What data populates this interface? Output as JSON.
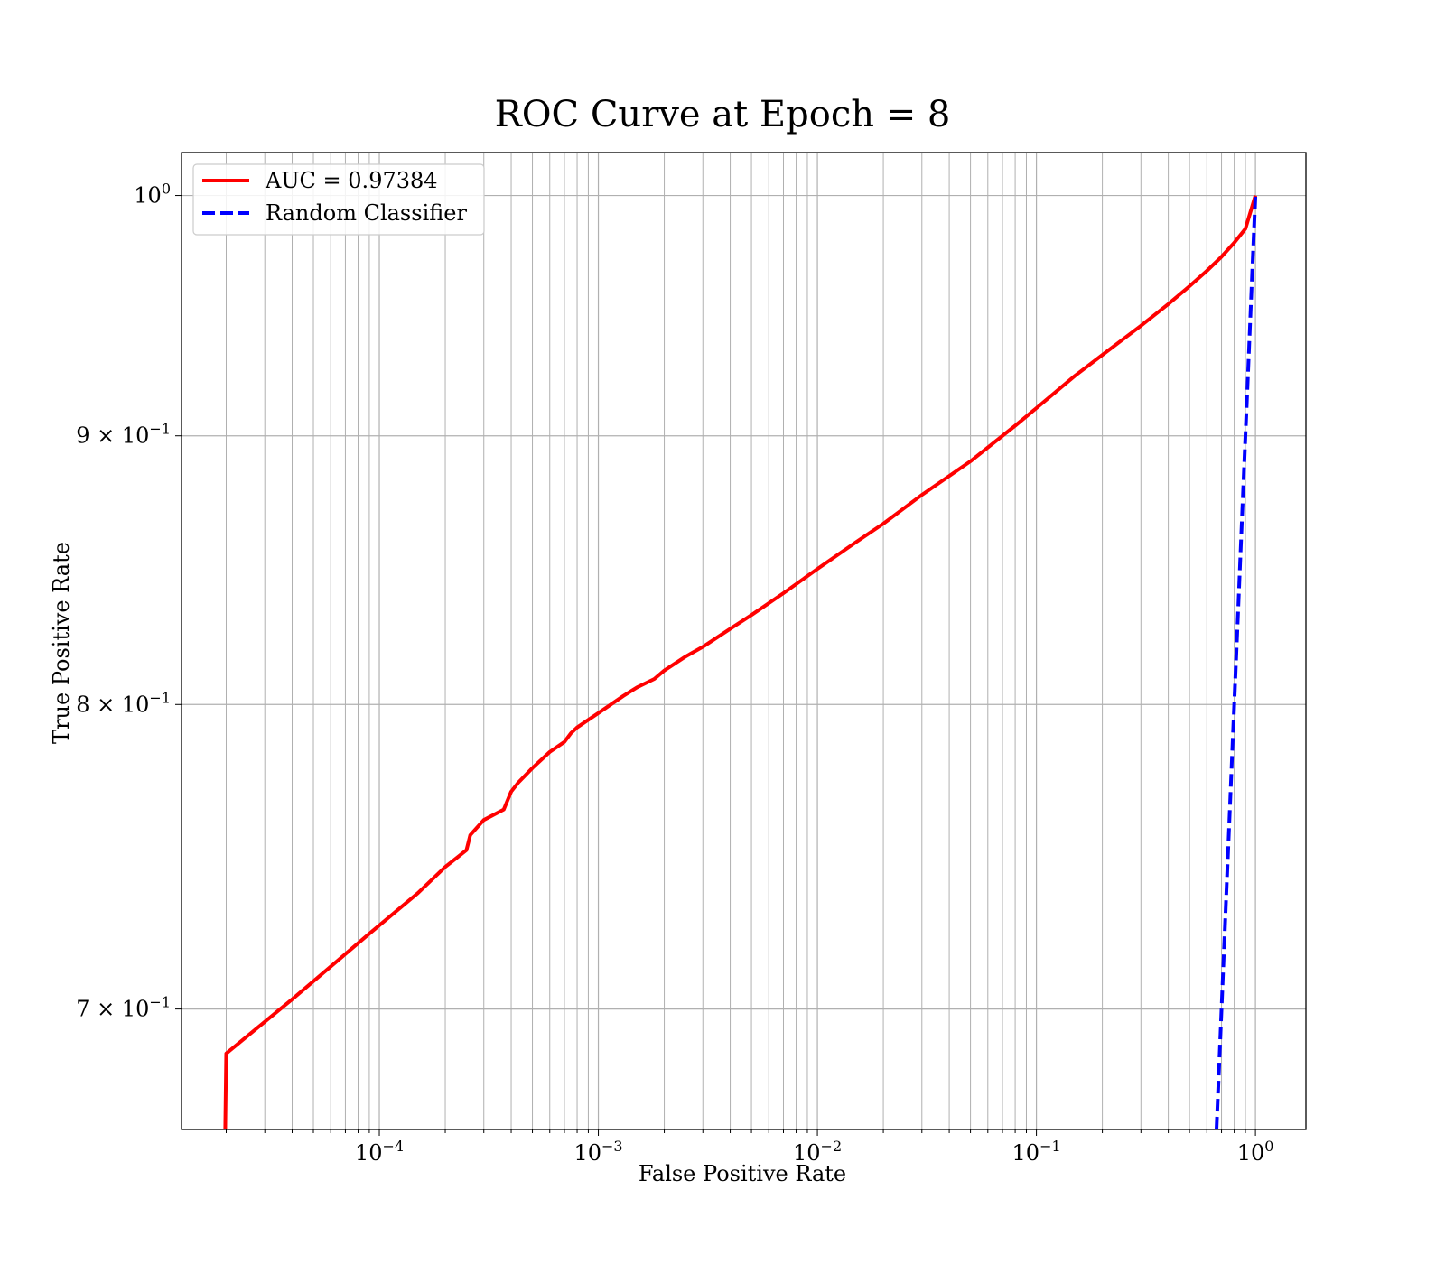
{
  "chart_data": {
    "type": "line",
    "title": "ROC Curve at Epoch = 8",
    "xlabel": "False Positive Rate",
    "ylabel": "True Positive Rate",
    "xscale": "log",
    "yscale": "log",
    "xlim": [
      1.25e-05,
      1.7
    ],
    "ylim": [
      0.664,
      1.019
    ],
    "grid": true,
    "grid_minor": true,
    "legend_position": "top-left",
    "x_ticks": [
      {
        "base": "10",
        "exp": "−4",
        "value": 0.0001
      },
      {
        "base": "10",
        "exp": "−3",
        "value": 0.001
      },
      {
        "base": "10",
        "exp": "−2",
        "value": 0.01
      },
      {
        "base": "10",
        "exp": "−1",
        "value": 0.1
      },
      {
        "base": "10",
        "exp": "0",
        "value": 1
      }
    ],
    "y_ticks": [
      {
        "base": "10",
        "exp": "0",
        "value": 1.0
      },
      {
        "base": "9 × 10",
        "exp": "−1",
        "value": 0.9
      },
      {
        "base": "8 × 10",
        "exp": "−1",
        "value": 0.8
      },
      {
        "base": "7 × 10",
        "exp": "−1",
        "value": 0.7
      }
    ],
    "series": [
      {
        "name": "AUC = 0.97384",
        "color": "#ff0000",
        "style": "solid",
        "x": [
          1.98e-05,
          2e-05,
          4e-05,
          9e-05,
          0.00015,
          0.0002,
          0.00025,
          0.00026,
          0.0003,
          0.00037,
          0.0004,
          0.00043,
          0.0005,
          0.0006,
          0.0007,
          0.00075,
          0.0008,
          0.001,
          0.0013,
          0.0015,
          0.0018,
          0.002,
          0.0025,
          0.003,
          0.004,
          0.005,
          0.007,
          0.01,
          0.015,
          0.02,
          0.03,
          0.05,
          0.08,
          0.1,
          0.15,
          0.2,
          0.3,
          0.4,
          0.5,
          0.6,
          0.7,
          0.8,
          0.9,
          1.0
        ],
        "y": [
          0.664,
          0.6865,
          0.703,
          0.7235,
          0.7365,
          0.745,
          0.7505,
          0.7555,
          0.7605,
          0.764,
          0.77,
          0.773,
          0.778,
          0.7835,
          0.787,
          0.79,
          0.792,
          0.797,
          0.803,
          0.806,
          0.809,
          0.812,
          0.817,
          0.8205,
          0.827,
          0.832,
          0.84,
          0.849,
          0.859,
          0.866,
          0.877,
          0.89,
          0.904,
          0.911,
          0.924,
          0.9325,
          0.9445,
          0.9535,
          0.961,
          0.9675,
          0.9735,
          0.9795,
          0.9855,
          1.0
        ]
      },
      {
        "name": "Random Classifier",
        "color": "#0000ff",
        "style": "dashed",
        "x": [
          0.664,
          1.0
        ],
        "y": [
          0.664,
          1.0
        ]
      }
    ]
  }
}
